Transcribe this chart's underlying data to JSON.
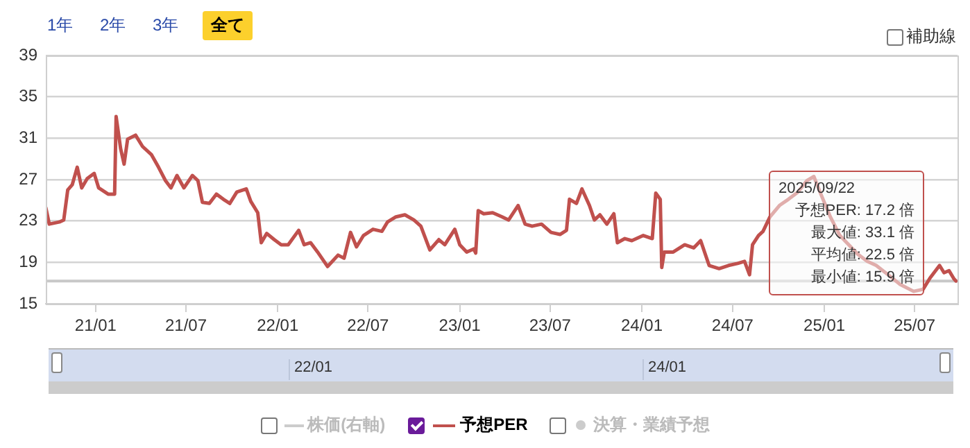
{
  "chart_data": {
    "type": "line",
    "xlim": [
      "2020-09-23",
      "2025-09-25"
    ],
    "xticks": [
      {
        "value": "2021-01-01",
        "label": "21/01"
      },
      {
        "value": "2021-07-01",
        "label": "21/07"
      },
      {
        "value": "2022-01-01",
        "label": "22/01"
      },
      {
        "value": "2022-07-01",
        "label": "22/07"
      },
      {
        "value": "2023-01-01",
        "label": "23/01"
      },
      {
        "value": "2023-07-01",
        "label": "23/07"
      },
      {
        "value": "2024-01-01",
        "label": "24/01"
      },
      {
        "value": "2024-07-01",
        "label": "24/07"
      },
      {
        "value": "2025-01-01",
        "label": "25/01"
      },
      {
        "value": "2025-07-01",
        "label": "25/07"
      }
    ],
    "ylim": [
      15,
      39
    ],
    "yticks": [
      15,
      19,
      23,
      27,
      31,
      35,
      39
    ],
    "grid": "y",
    "legend": "bottom",
    "marker": "none",
    "line_style": "solid",
    "ref_lines": [
      {
        "axis": "y",
        "value": 17.2,
        "color": "#c8c8c8"
      }
    ],
    "annotations": [
      "1年",
      "2年",
      "3年",
      "全て",
      "補助線",
      "22/01",
      "24/01",
      "株価(右軸)",
      "決算・業績予想",
      "2025/09/22",
      "予想PER: 17.2 倍",
      "最大値: 33.1 倍",
      "平均値: 22.5 倍",
      "最小値: 15.9 倍"
    ],
    "series": [
      {
        "name": "予想PER",
        "color": "#c0504d",
        "x": [
          "2020-09-23",
          "2020-09-30",
          "2020-10-20",
          "2020-10-29",
          "2020-11-06",
          "2020-11-15",
          "2020-11-25",
          "2020-12-04",
          "2020-12-15",
          "2020-12-29",
          "2021-01-07",
          "2021-01-26",
          "2021-02-08",
          "2021-02-11",
          "2021-02-20",
          "2021-02-27",
          "2021-03-06",
          "2021-03-22",
          "2021-04-05",
          "2021-04-23",
          "2021-05-07",
          "2021-05-21",
          "2021-06-01",
          "2021-06-13",
          "2021-06-27",
          "2021-07-14",
          "2021-07-25",
          "2021-08-03",
          "2021-08-17",
          "2021-08-31",
          "2021-09-14",
          "2021-09-27",
          "2021-10-11",
          "2021-10-30",
          "2021-11-08",
          "2021-11-22",
          "2021-11-29",
          "2021-12-10",
          "2021-12-25",
          "2022-01-08",
          "2022-01-22",
          "2022-02-12",
          "2022-02-23",
          "2022-03-08",
          "2022-03-22",
          "2022-04-11",
          "2022-05-02",
          "2022-05-14",
          "2022-05-27",
          "2022-06-08",
          "2022-06-22",
          "2022-07-11",
          "2022-07-29",
          "2022-08-09",
          "2022-08-26",
          "2022-09-13",
          "2022-10-01",
          "2022-10-15",
          "2022-11-02",
          "2022-11-20",
          "2022-12-02",
          "2022-12-22",
          "2023-01-01",
          "2023-01-15",
          "2023-01-29",
          "2023-02-02",
          "2023-02-07",
          "2023-02-18",
          "2023-03-08",
          "2023-03-27",
          "2023-04-09",
          "2023-04-28",
          "2023-05-12",
          "2023-05-26",
          "2023-06-14",
          "2023-07-03",
          "2023-07-21",
          "2023-08-03",
          "2023-08-09",
          "2023-08-23",
          "2023-09-03",
          "2023-09-18",
          "2023-09-28",
          "2023-10-09",
          "2023-10-23",
          "2023-11-06",
          "2023-11-13",
          "2023-11-28",
          "2023-12-12",
          "2024-01-04",
          "2024-01-22",
          "2024-01-29",
          "2024-02-07",
          "2024-02-10",
          "2024-02-15",
          "2024-03-04",
          "2024-03-27",
          "2024-04-14",
          "2024-04-28",
          "2024-05-15",
          "2024-06-04",
          "2024-06-23",
          "2024-07-11",
          "2024-07-25",
          "2024-08-04",
          "2024-08-10",
          "2024-08-22",
          "2024-08-31",
          "2024-09-14",
          "2024-10-03",
          "2024-10-21",
          "2024-11-09",
          "2024-11-27",
          "2024-12-11",
          "2024-12-25",
          "2025-01-13",
          "2025-02-01",
          "2025-02-19",
          "2025-03-09",
          "2025-03-28",
          "2025-04-15",
          "2025-05-09",
          "2025-06-01",
          "2025-06-29",
          "2025-07-18",
          "2025-08-01",
          "2025-08-20",
          "2025-08-29",
          "2025-09-08",
          "2025-09-18",
          "2025-09-22"
        ],
        "values": [
          24.3,
          22.7,
          22.9,
          23.1,
          26.0,
          26.5,
          28.2,
          26.2,
          27.1,
          27.6,
          26.2,
          25.6,
          25.6,
          33.1,
          30.0,
          28.5,
          30.9,
          31.3,
          30.2,
          29.4,
          28.2,
          26.9,
          26.2,
          27.4,
          26.2,
          27.4,
          26.9,
          24.8,
          24.7,
          25.6,
          25.1,
          24.7,
          25.8,
          26.1,
          24.9,
          23.8,
          20.9,
          21.8,
          21.2,
          20.7,
          20.7,
          22.1,
          20.7,
          20.9,
          20.0,
          18.6,
          19.7,
          19.4,
          21.9,
          20.5,
          21.6,
          22.2,
          22.0,
          22.9,
          23.4,
          23.6,
          23.1,
          22.5,
          20.2,
          21.2,
          20.7,
          22.2,
          20.7,
          20.0,
          20.3,
          19.9,
          24.0,
          23.7,
          23.8,
          23.4,
          23.1,
          24.5,
          22.7,
          22.5,
          22.7,
          21.9,
          21.7,
          22.1,
          25.1,
          24.7,
          26.1,
          24.5,
          23.1,
          23.6,
          22.7,
          23.7,
          20.9,
          21.3,
          21.1,
          21.6,
          21.3,
          25.7,
          25.1,
          18.5,
          20.0,
          20.0,
          20.7,
          20.4,
          21.1,
          18.7,
          18.4,
          18.7,
          18.9,
          19.1,
          17.8,
          20.7,
          21.6,
          22.0,
          23.4,
          24.5,
          25.1,
          25.8,
          26.9,
          27.3,
          25.6,
          23.4,
          21.6,
          20.7,
          19.8,
          19.1,
          18.7,
          17.8,
          16.9,
          16.2,
          16.4,
          17.5,
          18.7,
          18.0,
          18.2,
          17.4,
          17.2
        ]
      }
    ]
  }
}
